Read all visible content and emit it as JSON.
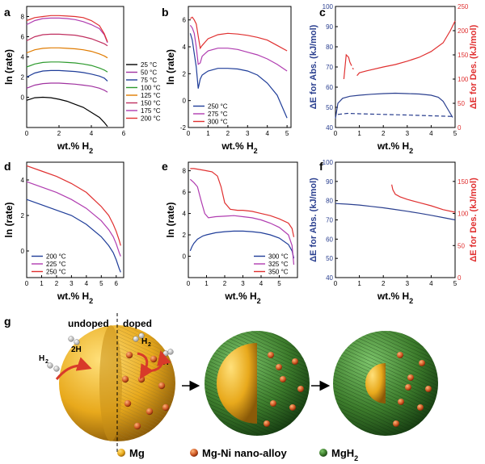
{
  "figure": {
    "panel_labels": [
      "a",
      "b",
      "c",
      "d",
      "e",
      "f",
      "g"
    ],
    "schematic": {
      "labels": {
        "undoped": "undoped",
        "doped": "doped",
        "h2": "H",
        "h2_sub": "2",
        "two_h": "2H"
      },
      "legend": [
        {
          "label": "Mg",
          "color": "#f2c230"
        },
        {
          "label": "Mg-Ni nano-alloy",
          "color": "#d8642a"
        },
        {
          "label": "MgH",
          "sub": "2",
          "color": "#3e8c2e"
        }
      ]
    }
  },
  "chart_data": [
    {
      "id": "a",
      "type": "line",
      "xlabel": "wt.% H",
      "xlabel_sub": "2",
      "ylabel": "ln (rate)",
      "xlim": [
        0,
        6
      ],
      "ylim": [
        -3,
        9
      ],
      "xticks": [
        "0",
        "2",
        "4",
        "6"
      ],
      "yticks": [
        "0",
        "2",
        "4",
        "6",
        "8"
      ],
      "legend_position": "bottom-right",
      "series": [
        {
          "name": "25 °C",
          "color": "#000000",
          "x": [
            0,
            0.5,
            1,
            1.5,
            2,
            2.5,
            3,
            3.5,
            4,
            4.5,
            4.8,
            5.0
          ],
          "y": [
            -0.3,
            -0.05,
            0,
            -0.05,
            -0.2,
            -0.4,
            -0.7,
            -1,
            -1.5,
            -2,
            -2.5,
            -2.9
          ]
        },
        {
          "name": "50 °C",
          "color": "#a032a0",
          "x": [
            0,
            0.5,
            1,
            1.5,
            2,
            2.5,
            3,
            3.5,
            4,
            4.5,
            4.8,
            5.0
          ],
          "y": [
            0.9,
            1.2,
            1.35,
            1.4,
            1.4,
            1.35,
            1.3,
            1.2,
            1.1,
            0.9,
            0.7,
            0.5
          ]
        },
        {
          "name": "75 °C",
          "color": "#1f3d99",
          "x": [
            0,
            0.5,
            1,
            1.5,
            2,
            2.5,
            3,
            3.5,
            4,
            4.5,
            4.8,
            5.0
          ],
          "y": [
            2.0,
            2.4,
            2.6,
            2.65,
            2.65,
            2.6,
            2.55,
            2.45,
            2.3,
            2.1,
            1.9,
            1.6
          ]
        },
        {
          "name": "100 °C",
          "color": "#2d9a2d",
          "x": [
            0,
            0.5,
            1,
            1.5,
            2,
            2.5,
            3,
            3.5,
            4,
            4.5,
            4.8,
            5.0
          ],
          "y": [
            3.0,
            3.3,
            3.45,
            3.5,
            3.5,
            3.45,
            3.4,
            3.3,
            3.15,
            2.9,
            2.7,
            2.5
          ]
        },
        {
          "name": "125 °C",
          "color": "#e07b00",
          "x": [
            0,
            0.5,
            1,
            1.5,
            2,
            2.5,
            3,
            3.5,
            4,
            4.5,
            4.8,
            5.0
          ],
          "y": [
            4.4,
            4.7,
            4.85,
            4.9,
            4.9,
            4.85,
            4.8,
            4.7,
            4.55,
            4.3,
            4.1,
            3.9
          ]
        },
        {
          "name": "150 °C",
          "color": "#c03060",
          "x": [
            0,
            0.5,
            1,
            1.5,
            2,
            2.5,
            3,
            3.5,
            4,
            4.5,
            4.8,
            5.0
          ],
          "y": [
            5.6,
            6.0,
            6.2,
            6.25,
            6.25,
            6.2,
            6.15,
            6.0,
            5.8,
            5.5,
            5.3,
            5.1
          ]
        },
        {
          "name": "175 °C",
          "color": "#b03cb0",
          "x": [
            0,
            0.5,
            1,
            1.5,
            2,
            2.5,
            3,
            3.5,
            4,
            4.5,
            4.8,
            5.0
          ],
          "y": [
            7.2,
            7.6,
            7.8,
            7.85,
            7.85,
            7.8,
            7.7,
            7.5,
            7.2,
            6.8,
            6.2,
            5.4
          ]
        },
        {
          "name": "200 °C",
          "color": "#e03030",
          "x": [
            0,
            0.5,
            1,
            1.5,
            2,
            2.5,
            3,
            3.5,
            4,
            4.5,
            4.8,
            5.0
          ],
          "y": [
            7.6,
            7.9,
            8.0,
            8.1,
            8.1,
            8.05,
            8.0,
            7.9,
            7.6,
            7.1,
            6.3,
            5.5
          ]
        }
      ]
    },
    {
      "id": "b",
      "type": "line",
      "xlabel": "wt.% H",
      "xlabel_sub": "2",
      "ylabel": "ln (rate)",
      "xlim": [
        0,
        5.2
      ],
      "ylim": [
        -2,
        7
      ],
      "xticks": [
        "0",
        "1",
        "2",
        "3",
        "4",
        "5"
      ],
      "yticks": [
        "-2",
        "0",
        "2",
        "4",
        "6"
      ],
      "legend_position": "bottom-left",
      "series": [
        {
          "name": "250 °C",
          "color": "#1f3d99",
          "x": [
            0.1,
            0.2,
            0.3,
            0.4,
            0.5,
            0.6,
            0.7,
            1,
            1.5,
            2,
            2.5,
            3,
            3.5,
            4,
            4.5,
            5
          ],
          "y": [
            5.0,
            4.5,
            3.5,
            2.5,
            0.9,
            1.6,
            1.9,
            2.2,
            2.4,
            2.4,
            2.35,
            2.2,
            1.9,
            1.3,
            0.4,
            -1.3
          ]
        },
        {
          "name": "275 °C",
          "color": "#b03cb0",
          "x": [
            0.1,
            0.2,
            0.3,
            0.4,
            0.5,
            0.6,
            0.7,
            1,
            1.5,
            2,
            2.5,
            3,
            3.5,
            4,
            4.5,
            5
          ],
          "y": [
            5.6,
            5.4,
            5.0,
            4.0,
            2.7,
            2.8,
            3.3,
            3.7,
            3.9,
            3.9,
            3.8,
            3.6,
            3.4,
            3.1,
            2.7,
            2.2
          ]
        },
        {
          "name": "300 °C",
          "color": "#e03030",
          "x": [
            0.1,
            0.2,
            0.3,
            0.4,
            0.5,
            0.6,
            0.7,
            1,
            1.5,
            2,
            2.5,
            3,
            3.5,
            4,
            4.5,
            5
          ],
          "y": [
            6.1,
            6.2,
            6.0,
            5.7,
            4.8,
            3.9,
            4.1,
            4.6,
            4.9,
            5.0,
            4.95,
            4.85,
            4.7,
            4.5,
            4.1,
            3.7
          ]
        }
      ]
    },
    {
      "id": "c",
      "type": "line",
      "xlabel": "wt.% H",
      "xlabel_sub": "2",
      "ylabel": "ΔE for Abs. (kJ/mol)",
      "ylabel_right": "ΔE for Des. (kJ/mol)",
      "xlim": [
        0,
        5
      ],
      "ylim": [
        40,
        100
      ],
      "ylim_right": [
        0,
        250
      ],
      "xticks": [
        "0",
        "1",
        "2",
        "3",
        "4",
        "5"
      ],
      "yticks": [
        "40",
        "50",
        "60",
        "70",
        "80",
        "90",
        "100"
      ],
      "yticks_right": [
        "0",
        "50",
        "100",
        "150",
        "200",
        "250"
      ],
      "series": [
        {
          "axis": "left",
          "style": "solid",
          "color": "#2a3f8f",
          "x": [
            0,
            0.1,
            0.3,
            0.6,
            1,
            1.5,
            2,
            2.5,
            3,
            3.5,
            4,
            4.3,
            4.5,
            4.7,
            4.9
          ],
          "y": [
            44.5,
            52,
            54.5,
            55.5,
            56,
            56.5,
            56.8,
            57,
            56.8,
            56.6,
            56,
            55,
            53,
            49,
            45
          ]
        },
        {
          "axis": "left",
          "style": "dashed",
          "color": "#2a3f8f",
          "x": [
            0.1,
            0.5,
            1,
            2,
            3,
            4,
            4.9
          ],
          "y": [
            46.5,
            47,
            46.8,
            46.5,
            46.2,
            45.8,
            45.5
          ]
        },
        {
          "axis": "right",
          "style": "solid",
          "color": "#e03030",
          "x": [
            0.35,
            0.45,
            0.55,
            0.6
          ],
          "y": [
            100,
            150,
            145,
            135
          ]
        },
        {
          "axis": "right",
          "style": "dashed",
          "color": "#e03030",
          "x": [
            0.6,
            0.75
          ],
          "y": [
            135,
            120
          ]
        },
        {
          "axis": "right",
          "style": "solid",
          "color": "#e03030",
          "x": [
            0.9,
            1.0,
            1.3,
            2,
            2.5,
            3,
            3.5,
            4,
            4.5,
            4.8,
            5
          ],
          "y": [
            107,
            113,
            117,
            125,
            130,
            137,
            145,
            157,
            175,
            200,
            220
          ]
        }
      ]
    },
    {
      "id": "d",
      "type": "line",
      "xlabel": "wt.% H",
      "xlabel_sub": "2",
      "ylabel": "ln (rate)",
      "xlim": [
        0,
        6.5
      ],
      "ylim": [
        -1.5,
        5
      ],
      "xticks": [
        "0",
        "1",
        "2",
        "3",
        "4",
        "5",
        "6"
      ],
      "yticks": [
        "0",
        "2",
        "4"
      ],
      "legend_position": "bottom-left",
      "series": [
        {
          "name": "200 °C",
          "color": "#1f3d99",
          "x": [
            0,
            1,
            2,
            3,
            4,
            5,
            5.5,
            5.8,
            6,
            6.2,
            6.3
          ],
          "y": [
            2.9,
            2.6,
            2.3,
            2.0,
            1.5,
            0.8,
            0.3,
            -0.1,
            -0.5,
            -1.0,
            -1.2
          ]
        },
        {
          "name": "225 °C",
          "color": "#b03cb0",
          "x": [
            0,
            1,
            2,
            3,
            4,
            5,
            5.5,
            5.8,
            6,
            6.2,
            6.3
          ],
          "y": [
            3.9,
            3.6,
            3.3,
            2.9,
            2.4,
            1.7,
            1.2,
            0.8,
            0.4,
            -0.1,
            -0.3
          ]
        },
        {
          "name": "250 °C",
          "color": "#e03030",
          "x": [
            0,
            1,
            2,
            3,
            4,
            5,
            5.5,
            5.8,
            6,
            6.2,
            6.3
          ],
          "y": [
            4.8,
            4.5,
            4.2,
            3.8,
            3.3,
            2.5,
            2.0,
            1.5,
            1.1,
            0.6,
            0.3
          ]
        }
      ]
    },
    {
      "id": "e",
      "type": "line",
      "xlabel": "wt.% H",
      "xlabel_sub": "2",
      "ylabel": "ln (rate)",
      "xlim": [
        0,
        6
      ],
      "ylim": [
        -2,
        8.8
      ],
      "xticks": [
        "0",
        "1",
        "2",
        "3",
        "4",
        "5"
      ],
      "yticks": [
        "0",
        "2",
        "4",
        "6",
        "8"
      ],
      "legend_position": "bottom-right",
      "series": [
        {
          "name": "300 °C",
          "color": "#1f3d99",
          "x": [
            0.1,
            0.2,
            0.3,
            0.5,
            0.8,
            1,
            1.5,
            2,
            2.5,
            3,
            3.5,
            4,
            4.5,
            5,
            5.5,
            5.7,
            5.8
          ],
          "y": [
            0.5,
            0.9,
            1.2,
            1.6,
            1.9,
            2.0,
            2.2,
            2.3,
            2.35,
            2.35,
            2.3,
            2.2,
            2.0,
            1.7,
            1.1,
            0.5,
            -0.2
          ]
        },
        {
          "name": "325 °C",
          "color": "#b03cb0",
          "x": [
            0.1,
            0.3,
            0.5,
            0.7,
            0.9,
            1.1,
            1.5,
            2,
            2.5,
            3,
            3.5,
            4,
            4.5,
            5,
            5.5,
            5.7,
            5.8
          ],
          "y": [
            7.2,
            6.9,
            6.5,
            5.2,
            4.0,
            3.6,
            3.7,
            3.75,
            3.8,
            3.7,
            3.6,
            3.4,
            3.1,
            2.7,
            2.0,
            1.0,
            -0.8
          ]
        },
        {
          "name": "350 °C",
          "color": "#e03030",
          "x": [
            0.1,
            0.3,
            0.5,
            1,
            1.3,
            1.6,
            1.8,
            2,
            2.3,
            2.7,
            3,
            3.5,
            4,
            4.5,
            5,
            5.5,
            5.7,
            5.8
          ],
          "y": [
            8.2,
            8.2,
            8.15,
            8.0,
            7.9,
            7.5,
            6.5,
            5.0,
            4.4,
            4.3,
            4.3,
            4.2,
            4.0,
            3.8,
            3.5,
            3.1,
            2.6,
            1.8
          ]
        }
      ]
    },
    {
      "id": "f",
      "type": "line",
      "xlabel": "wt.% H",
      "xlabel_sub": "2",
      "ylabel": "ΔE for Abs. (kJ/mol)",
      "ylabel_right": "ΔE for Des. (kJ/mol)",
      "xlim": [
        0,
        5
      ],
      "ylim": [
        40,
        100
      ],
      "ylim_right": [
        0,
        180
      ],
      "xticks": [
        "0",
        "1",
        "2",
        "3",
        "4",
        "5"
      ],
      "yticks": [
        "40",
        "50",
        "60",
        "70",
        "80",
        "90",
        "100"
      ],
      "yticks_right": [
        "0",
        "50",
        "100",
        "150"
      ],
      "series": [
        {
          "axis": "left",
          "style": "solid",
          "color": "#2a3f8f",
          "x": [
            0,
            0.5,
            1,
            1.5,
            2,
            2.5,
            3,
            3.5,
            4,
            4.5,
            5
          ],
          "y": [
            78.5,
            78.2,
            77.7,
            77,
            76.3,
            75.4,
            74.5,
            73.5,
            72.4,
            71.2,
            70
          ]
        },
        {
          "axis": "right",
          "style": "solid",
          "color": "#e03030",
          "x": [
            2.35,
            2.4,
            2.5,
            2.7,
            3,
            3.5,
            4,
            4.5,
            5
          ],
          "y": [
            145,
            137,
            130,
            126,
            122,
            117,
            112,
            106,
            102
          ]
        }
      ]
    }
  ]
}
